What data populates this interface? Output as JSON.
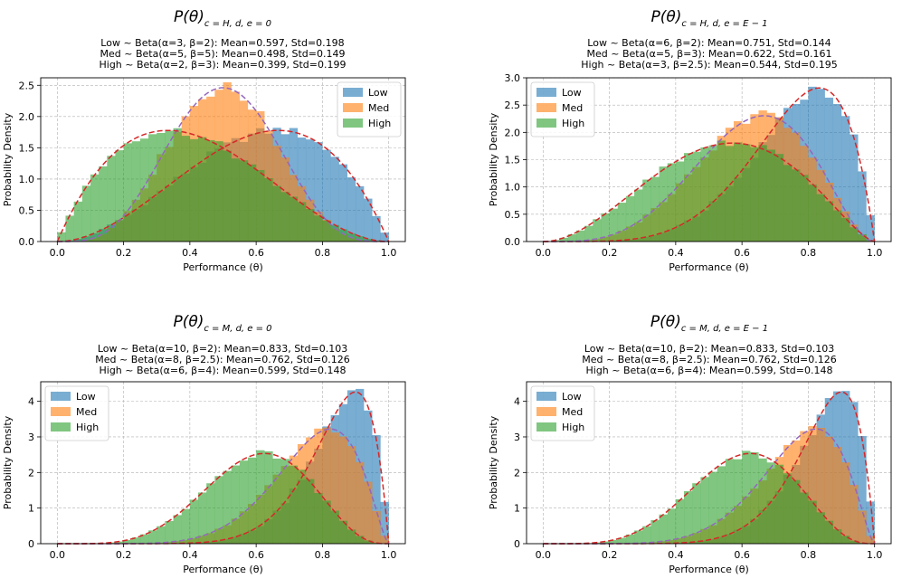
{
  "colors": {
    "low": "#1f77b4",
    "med": "#ff7f0e",
    "high": "#2ca02c",
    "curve_purple": "#9467bd",
    "curve_red": "#d62728",
    "grid": "#b0b0b0"
  },
  "chart_data": [
    {
      "type": "histogram-with-density",
      "title_main": "P(θ)",
      "title_subscript": "c = H, d, e = 0",
      "subtitle_lines": [
        "Low ~ Beta(α=3, β=2): Mean=0.597, Std=0.198",
        "Med ~ Beta(α=5, β=5): Mean=0.498, Std=0.149",
        "High ~ Beta(α=2, β=3): Mean=0.399, Std=0.199"
      ],
      "xlabel": "Performance (θ)",
      "ylabel": "Probability Density",
      "xlim": [
        -0.05,
        1.05
      ],
      "ylim": [
        0,
        2.62
      ],
      "xticks": [
        0.0,
        0.2,
        0.4,
        0.6,
        0.8,
        1.0
      ],
      "xtick_labels": [
        "0.0",
        "0.2",
        "0.4",
        "0.6",
        "0.8",
        "1.0"
      ],
      "yticks": [
        0,
        0.5,
        1.0,
        1.5,
        2.0,
        2.5
      ],
      "ytick_labels": [
        "0.0",
        "0.5",
        "1.0",
        "1.5",
        "2.0",
        "2.5"
      ],
      "grid": true,
      "legend_position": "top-right",
      "legend": [
        "Low",
        "Med",
        "High"
      ],
      "series": [
        {
          "name": "Low",
          "color_key": "low",
          "alpha": 3,
          "beta": 2,
          "curve_color_key": "curve_red"
        },
        {
          "name": "Med",
          "color_key": "med",
          "alpha": 5,
          "beta": 5,
          "curve_color_key": "curve_purple"
        },
        {
          "name": "High",
          "color_key": "high",
          "alpha": 2,
          "beta": 3,
          "curve_color_key": "curve_red"
        }
      ]
    },
    {
      "type": "histogram-with-density",
      "title_main": "P(θ)",
      "title_subscript": "c = H, d, e = E − 1",
      "subtitle_lines": [
        "Low ~ Beta(α=6, β=2): Mean=0.751, Std=0.144",
        "Med ~ Beta(α=5, β=3): Mean=0.622, Std=0.161",
        "High ~ Beta(α=3, β=2.5): Mean=0.544, Std=0.195"
      ],
      "xlabel": "Performance (θ)",
      "ylabel": "Probability Density",
      "xlim": [
        -0.05,
        1.05
      ],
      "ylim": [
        0,
        3.0
      ],
      "xticks": [
        0.0,
        0.2,
        0.4,
        0.6,
        0.8,
        1.0
      ],
      "xtick_labels": [
        "0.0",
        "0.2",
        "0.4",
        "0.6",
        "0.8",
        "1.0"
      ],
      "yticks": [
        0,
        0.5,
        1.0,
        1.5,
        2.0,
        2.5,
        3.0
      ],
      "ytick_labels": [
        "0.0",
        "0.5",
        "1.0",
        "1.5",
        "2.0",
        "2.5",
        "3.0"
      ],
      "grid": true,
      "legend_position": "top-left",
      "legend": [
        "Low",
        "Med",
        "High"
      ],
      "series": [
        {
          "name": "Low",
          "color_key": "low",
          "alpha": 6,
          "beta": 2,
          "curve_color_key": "curve_red"
        },
        {
          "name": "Med",
          "color_key": "med",
          "alpha": 5,
          "beta": 3,
          "curve_color_key": "curve_purple"
        },
        {
          "name": "High",
          "color_key": "high",
          "alpha": 3,
          "beta": 2.5,
          "curve_color_key": "curve_red"
        }
      ]
    },
    {
      "type": "histogram-with-density",
      "title_main": "P(θ)",
      "title_subscript": "c = M, d, e = 0",
      "subtitle_lines": [
        "Low ~ Beta(α=10, β=2): Mean=0.833, Std=0.103",
        "Med ~ Beta(α=8, β=2.5): Mean=0.762, Std=0.126",
        "High ~ Beta(α=6, β=4): Mean=0.599, Std=0.148"
      ],
      "xlabel": "Performance (θ)",
      "ylabel": "Probability Density",
      "xlim": [
        -0.05,
        1.05
      ],
      "ylim": [
        0,
        4.55
      ],
      "xticks": [
        0.0,
        0.2,
        0.4,
        0.6,
        0.8,
        1.0
      ],
      "xtick_labels": [
        "0.0",
        "0.2",
        "0.4",
        "0.6",
        "0.8",
        "1.0"
      ],
      "yticks": [
        0,
        1,
        2,
        3,
        4
      ],
      "ytick_labels": [
        "0",
        "1",
        "2",
        "3",
        "4"
      ],
      "grid": true,
      "legend_position": "top-left",
      "legend": [
        "Low",
        "Med",
        "High"
      ],
      "series": [
        {
          "name": "Low",
          "color_key": "low",
          "alpha": 10,
          "beta": 2,
          "curve_color_key": "curve_red"
        },
        {
          "name": "Med",
          "color_key": "med",
          "alpha": 8,
          "beta": 2.5,
          "curve_color_key": "curve_purple"
        },
        {
          "name": "High",
          "color_key": "high",
          "alpha": 6,
          "beta": 4,
          "curve_color_key": "curve_red"
        }
      ]
    },
    {
      "type": "histogram-with-density",
      "title_main": "P(θ)",
      "title_subscript": "c = M, d, e = E − 1",
      "subtitle_lines": [
        "Low ~ Beta(α=10, β=2): Mean=0.833, Std=0.103",
        "Med ~ Beta(α=8, β=2.5): Mean=0.762, Std=0.126",
        "High ~ Beta(α=6, β=4): Mean=0.599, Std=0.148"
      ],
      "xlabel": "Performance (θ)",
      "ylabel": "Probability Density",
      "xlim": [
        -0.05,
        1.05
      ],
      "ylim": [
        0,
        4.55
      ],
      "xticks": [
        0.0,
        0.2,
        0.4,
        0.6,
        0.8,
        1.0
      ],
      "xtick_labels": [
        "0.0",
        "0.2",
        "0.4",
        "0.6",
        "0.8",
        "1.0"
      ],
      "yticks": [
        0,
        1,
        2,
        3,
        4
      ],
      "ytick_labels": [
        "0",
        "1",
        "2",
        "3",
        "4"
      ],
      "grid": true,
      "legend_position": "top-left",
      "legend": [
        "Low",
        "Med",
        "High"
      ],
      "series": [
        {
          "name": "Low",
          "color_key": "low",
          "alpha": 10,
          "beta": 2,
          "curve_color_key": "curve_red"
        },
        {
          "name": "Med",
          "color_key": "med",
          "alpha": 8,
          "beta": 2.5,
          "curve_color_key": "curve_purple"
        },
        {
          "name": "High",
          "color_key": "high",
          "alpha": 6,
          "beta": 4,
          "curve_color_key": "curve_red"
        }
      ]
    }
  ]
}
